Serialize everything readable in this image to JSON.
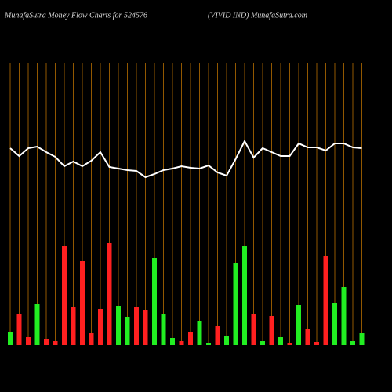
{
  "chart_data": {
    "type": "bar",
    "title": "MunafaSutra  Money Flow  Charts for 524576",
    "subtitle": "(VIVID IND) MunafaSutra.com",
    "categories": [
      null,
      null,
      null,
      null,
      null,
      null,
      null,
      null,
      null,
      null,
      null,
      null,
      null,
      null,
      null,
      null,
      null,
      null,
      null,
      null,
      null,
      null,
      null,
      null,
      null,
      null,
      null,
      null,
      null,
      null,
      null,
      null,
      null,
      null,
      null,
      null,
      null,
      null,
      null,
      null
    ],
    "values": [
      16,
      39,
      10,
      52,
      7,
      5,
      126,
      48,
      107,
      15,
      46,
      130,
      50,
      36,
      49,
      45,
      111,
      39,
      9,
      5,
      16,
      31,
      2,
      24,
      12,
      105,
      126,
      39,
      5,
      37,
      10,
      2,
      51,
      20,
      4,
      114,
      53,
      74,
      5,
      15
    ],
    "colors": [
      "#22ee22",
      "#ff2020",
      "#ff2020",
      "#22ee22",
      "#ff2020",
      "#ff2020",
      "#ff2020",
      "#ff2020",
      "#ff2020",
      "#ff2020",
      "#ff2020",
      "#ff2020",
      "#22ee22",
      "#22ee22",
      "#ff2020",
      "#ff2020",
      "#22ee22",
      "#22ee22",
      "#22ee22",
      "#ff2020",
      "#ff2020",
      "#22ee22",
      "#22ee22",
      "#ff2020",
      "#22ee22",
      "#22ee22",
      "#22ee22",
      "#ff2020",
      "#22ee22",
      "#ff2020",
      "#22ee22",
      "#ff2020",
      "#22ee22",
      "#ff2020",
      "#ff2020",
      "#ff2020",
      "#22ee22",
      "#22ee22",
      "#22ee22",
      "#22ee22"
    ],
    "line_values": [
      251,
      241,
      251,
      253,
      246,
      240,
      228,
      234,
      228,
      235,
      246,
      227,
      225,
      223,
      222,
      214,
      218,
      223,
      225,
      228,
      226,
      225,
      229,
      220,
      216,
      237,
      260,
      239,
      251,
      246,
      241,
      241,
      257,
      252,
      252,
      248,
      257,
      257,
      252,
      251
    ],
    "line_color": "#ffffff",
    "grid_color": "#b86e00",
    "ylim": [
      0,
      360
    ]
  }
}
